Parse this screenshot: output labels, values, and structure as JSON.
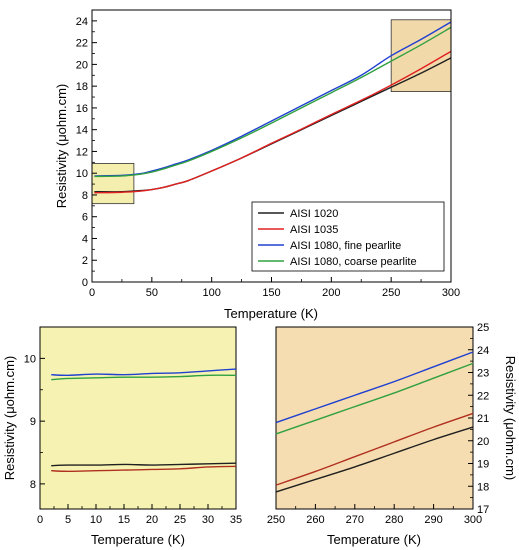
{
  "chart_data": [
    {
      "id": "main",
      "type": "line",
      "xlabel": "Temperature (K)",
      "ylabel": "Resistivity (μohm.cm)",
      "xlim": [
        0,
        300
      ],
      "ylim": [
        0,
        25
      ],
      "xticks": [
        0,
        50,
        100,
        150,
        200,
        250,
        300
      ],
      "yticks": [
        0,
        2,
        4,
        6,
        8,
        10,
        12,
        14,
        16,
        18,
        20,
        22,
        24
      ],
      "legend_position": "bottom-right",
      "series": [
        {
          "name": "AISI 1020",
          "color": "#202020",
          "x": [
            2,
            25,
            40,
            50,
            60,
            70,
            80,
            100,
            125,
            150,
            175,
            200,
            225,
            250,
            275,
            300
          ],
          "y": [
            8.3,
            8.3,
            8.4,
            8.5,
            8.7,
            9.0,
            9.3,
            10.2,
            11.4,
            12.7,
            14.0,
            15.3,
            16.6,
            17.9,
            19.2,
            20.6
          ]
        },
        {
          "name": "AISI 1035",
          "color": "#e02020",
          "x": [
            2,
            25,
            40,
            50,
            60,
            70,
            80,
            100,
            125,
            150,
            175,
            200,
            225,
            250,
            275,
            300
          ],
          "y": [
            8.2,
            8.25,
            8.35,
            8.5,
            8.7,
            9.0,
            9.3,
            10.2,
            11.4,
            12.75,
            14.05,
            15.4,
            16.7,
            18.1,
            19.6,
            21.2
          ]
        },
        {
          "name": "AISI 1080, fine pearlite",
          "color": "#2040d0",
          "x": [
            2,
            25,
            40,
            50,
            60,
            70,
            80,
            100,
            125,
            150,
            175,
            200,
            225,
            250,
            275,
            300
          ],
          "y": [
            9.75,
            9.8,
            9.95,
            10.2,
            10.5,
            10.85,
            11.2,
            12.1,
            13.4,
            14.8,
            16.2,
            17.6,
            19.0,
            20.8,
            22.3,
            23.9
          ]
        },
        {
          "name": "AISI 1080, coarse pearlite",
          "color": "#30a040",
          "x": [
            2,
            25,
            40,
            50,
            60,
            70,
            80,
            100,
            125,
            150,
            175,
            200,
            225,
            250,
            275,
            300
          ],
          "y": [
            9.7,
            9.75,
            9.9,
            10.1,
            10.4,
            10.75,
            11.1,
            12.0,
            13.25,
            14.6,
            16.0,
            17.4,
            18.8,
            20.3,
            21.8,
            23.4
          ]
        }
      ],
      "highlight_boxes": [
        {
          "x": [
            0,
            35
          ],
          "y": [
            7.2,
            10.9
          ],
          "color": "#f2eca0"
        },
        {
          "x": [
            250,
            300
          ],
          "y": [
            17.5,
            24.1
          ],
          "color": "#f0d29a"
        }
      ]
    },
    {
      "id": "low-temp-inset",
      "type": "line",
      "xlabel": "Temperature (K)",
      "ylabel": "Resistivity (μohm.cm)",
      "xlim": [
        0,
        35
      ],
      "ylim": [
        7.6,
        10.5
      ],
      "xticks": [
        0,
        5,
        10,
        15,
        20,
        25,
        30,
        35
      ],
      "yticks": [
        8,
        9,
        10
      ],
      "background": "#f6f3b2",
      "series": [
        {
          "color": "#2040d0",
          "x": [
            2,
            5,
            10,
            15,
            20,
            25,
            30,
            35
          ],
          "y": [
            9.74,
            9.73,
            9.75,
            9.74,
            9.76,
            9.77,
            9.8,
            9.83
          ]
        },
        {
          "color": "#30a040",
          "x": [
            2,
            5,
            10,
            15,
            20,
            25,
            30,
            35
          ],
          "y": [
            9.66,
            9.68,
            9.69,
            9.7,
            9.7,
            9.71,
            9.73,
            9.73
          ]
        },
        {
          "color": "#202020",
          "x": [
            2,
            5,
            10,
            15,
            20,
            25,
            30,
            35
          ],
          "y": [
            8.29,
            8.3,
            8.3,
            8.31,
            8.3,
            8.31,
            8.32,
            8.33
          ]
        },
        {
          "color": "#b03020",
          "x": [
            2,
            5,
            10,
            15,
            20,
            25,
            30,
            35
          ],
          "y": [
            8.21,
            8.2,
            8.21,
            8.22,
            8.23,
            8.24,
            8.27,
            8.28
          ]
        }
      ]
    },
    {
      "id": "high-temp-inset",
      "type": "line",
      "xlabel": "Temperature (K)",
      "ylabel": "Resistivity (μohm.cm)",
      "xlim": [
        250,
        300
      ],
      "ylim": [
        17,
        25
      ],
      "xticks": [
        250,
        260,
        270,
        280,
        290,
        300
      ],
      "yticks": [
        17,
        18,
        19,
        20,
        21,
        22,
        23,
        24,
        25
      ],
      "y_axis_side": "right",
      "background": "#f6ddb1",
      "series": [
        {
          "color": "#2040d0",
          "x": [
            250,
            260,
            270,
            280,
            290,
            300
          ],
          "y": [
            20.8,
            21.4,
            22.0,
            22.6,
            23.25,
            23.9
          ]
        },
        {
          "color": "#30a040",
          "x": [
            250,
            260,
            270,
            280,
            290,
            300
          ],
          "y": [
            20.3,
            20.9,
            21.5,
            22.1,
            22.75,
            23.4
          ]
        },
        {
          "color": "#b03020",
          "x": [
            250,
            260,
            270,
            280,
            290,
            300
          ],
          "y": [
            18.05,
            18.65,
            19.3,
            19.95,
            20.6,
            21.2
          ]
        },
        {
          "color": "#202020",
          "x": [
            250,
            260,
            270,
            280,
            290,
            300
          ],
          "y": [
            17.75,
            18.3,
            18.85,
            19.45,
            20.05,
            20.6
          ]
        }
      ]
    }
  ]
}
